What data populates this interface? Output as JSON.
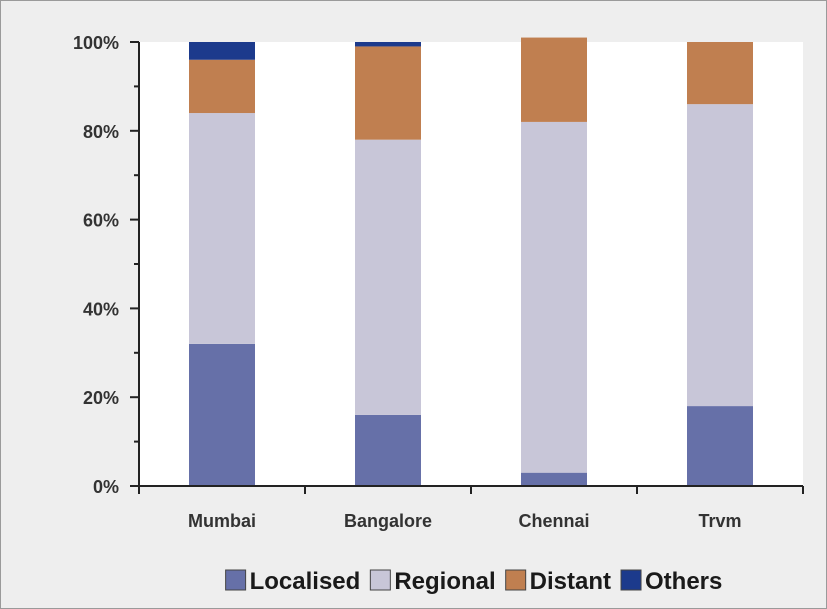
{
  "chart_data": {
    "type": "bar",
    "stacked": true,
    "percent": true,
    "categories": [
      "Mumbai",
      "Bangalore",
      "Chennai",
      "Trvm"
    ],
    "series": [
      {
        "name": "Localised",
        "values": [
          32,
          16,
          3,
          18
        ],
        "color": "#6670a8"
      },
      {
        "name": "Regional",
        "values": [
          52,
          62,
          79,
          68
        ],
        "color": "#c8c6d8"
      },
      {
        "name": "Distant",
        "values": [
          12,
          21,
          19,
          14
        ],
        "color": "#c07f50"
      },
      {
        "name": "Others",
        "values": [
          4,
          1,
          0,
          0
        ],
        "color": "#1c3a8c"
      }
    ],
    "y_ticks": [
      "0%",
      "20%",
      "40%",
      "60%",
      "80%",
      "100%"
    ],
    "ylim": [
      0,
      100
    ],
    "grid": false,
    "legend_position": "bottom"
  }
}
